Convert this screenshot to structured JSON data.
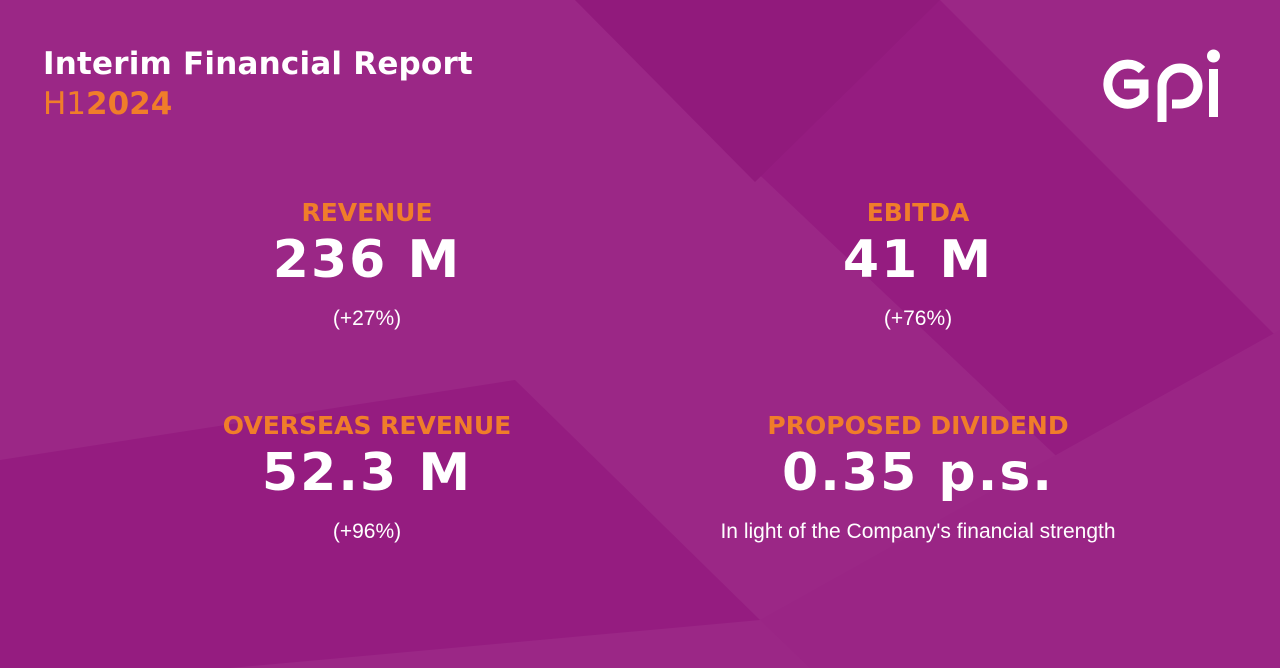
{
  "header": {
    "title": "Interim Financial Report",
    "period_prefix": "H1",
    "period_year": "2024"
  },
  "logo": {
    "text": "gpi"
  },
  "colors": {
    "background": "#951c80",
    "background_light": "#9e2a89",
    "accent": "#f07d2a",
    "text": "#ffffff"
  },
  "kpis": [
    {
      "label": "REVENUE",
      "value": "236 M",
      "sub": "(+27%)"
    },
    {
      "label": "EBITDA",
      "value": "41 M",
      "sub": "(+76%)"
    },
    {
      "label": "OVERSEAS REVENUE",
      "value": "52.3 M",
      "sub": "(+96%)"
    },
    {
      "label": "PROPOSED DIVIDEND",
      "value": "0.35 p.s.",
      "sub": "In light of the Company's financial strength"
    }
  ]
}
